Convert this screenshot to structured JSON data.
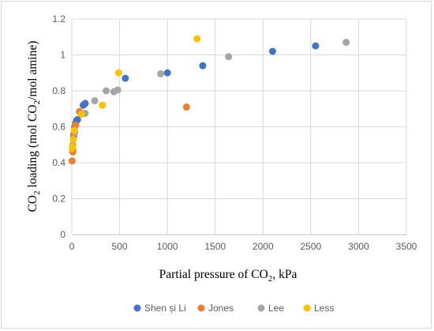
{
  "chart_data": {
    "type": "scatter",
    "xlabel_parts": {
      "main": "Partial pressure of CO",
      "sub": "2",
      "tail": ", kPa"
    },
    "ylabel_parts": {
      "pre": "CO",
      "sub1": "2",
      "mid": " loading (mol CO",
      "sub2": "2",
      "post": "/mol amine)"
    },
    "xlim": [
      0,
      3500
    ],
    "ylim": [
      0,
      1.2
    ],
    "x_ticks": [
      "0",
      "500",
      "1000",
      "1500",
      "2000",
      "2500",
      "3000",
      "3500"
    ],
    "y_ticks": [
      "0",
      "0.2",
      "0.4",
      "0.6",
      "0.8",
      "1",
      "1.2"
    ],
    "grid": true,
    "legend_position": "bottom",
    "series": [
      {
        "name": "Shen și Li",
        "color": "#4472C4",
        "points": [
          [
            10,
            0.47
          ],
          [
            20,
            0.55
          ],
          [
            30,
            0.6
          ],
          [
            40,
            0.62
          ],
          [
            50,
            0.635
          ],
          [
            60,
            0.64
          ],
          [
            120,
            0.72
          ],
          [
            140,
            0.73
          ],
          [
            560,
            0.87
          ],
          [
            1000,
            0.9
          ],
          [
            1370,
            0.94
          ],
          [
            2100,
            1.02
          ],
          [
            2550,
            1.05
          ]
        ]
      },
      {
        "name": "Jones",
        "color": "#ED7D31",
        "points": [
          [
            3,
            0.41
          ],
          [
            10,
            0.46
          ],
          [
            20,
            0.56
          ],
          [
            40,
            0.61
          ],
          [
            80,
            0.685
          ],
          [
            1200,
            0.71
          ]
        ]
      },
      {
        "name": "Lee",
        "color": "#A5A5A5",
        "points": [
          [
            10,
            0.5
          ],
          [
            30,
            0.57
          ],
          [
            100,
            0.67
          ],
          [
            140,
            0.675
          ],
          [
            240,
            0.745
          ],
          [
            360,
            0.8
          ],
          [
            440,
            0.795
          ],
          [
            480,
            0.805
          ],
          [
            930,
            0.895
          ],
          [
            1640,
            0.99
          ],
          [
            2870,
            1.07
          ]
        ]
      },
      {
        "name": "Less",
        "color": "#FFC000",
        "points": [
          [
            5,
            0.48
          ],
          [
            8,
            0.49
          ],
          [
            15,
            0.53
          ],
          [
            25,
            0.58
          ],
          [
            100,
            0.67
          ],
          [
            320,
            0.72
          ],
          [
            490,
            0.9
          ],
          [
            1310,
            1.09
          ]
        ]
      }
    ]
  }
}
